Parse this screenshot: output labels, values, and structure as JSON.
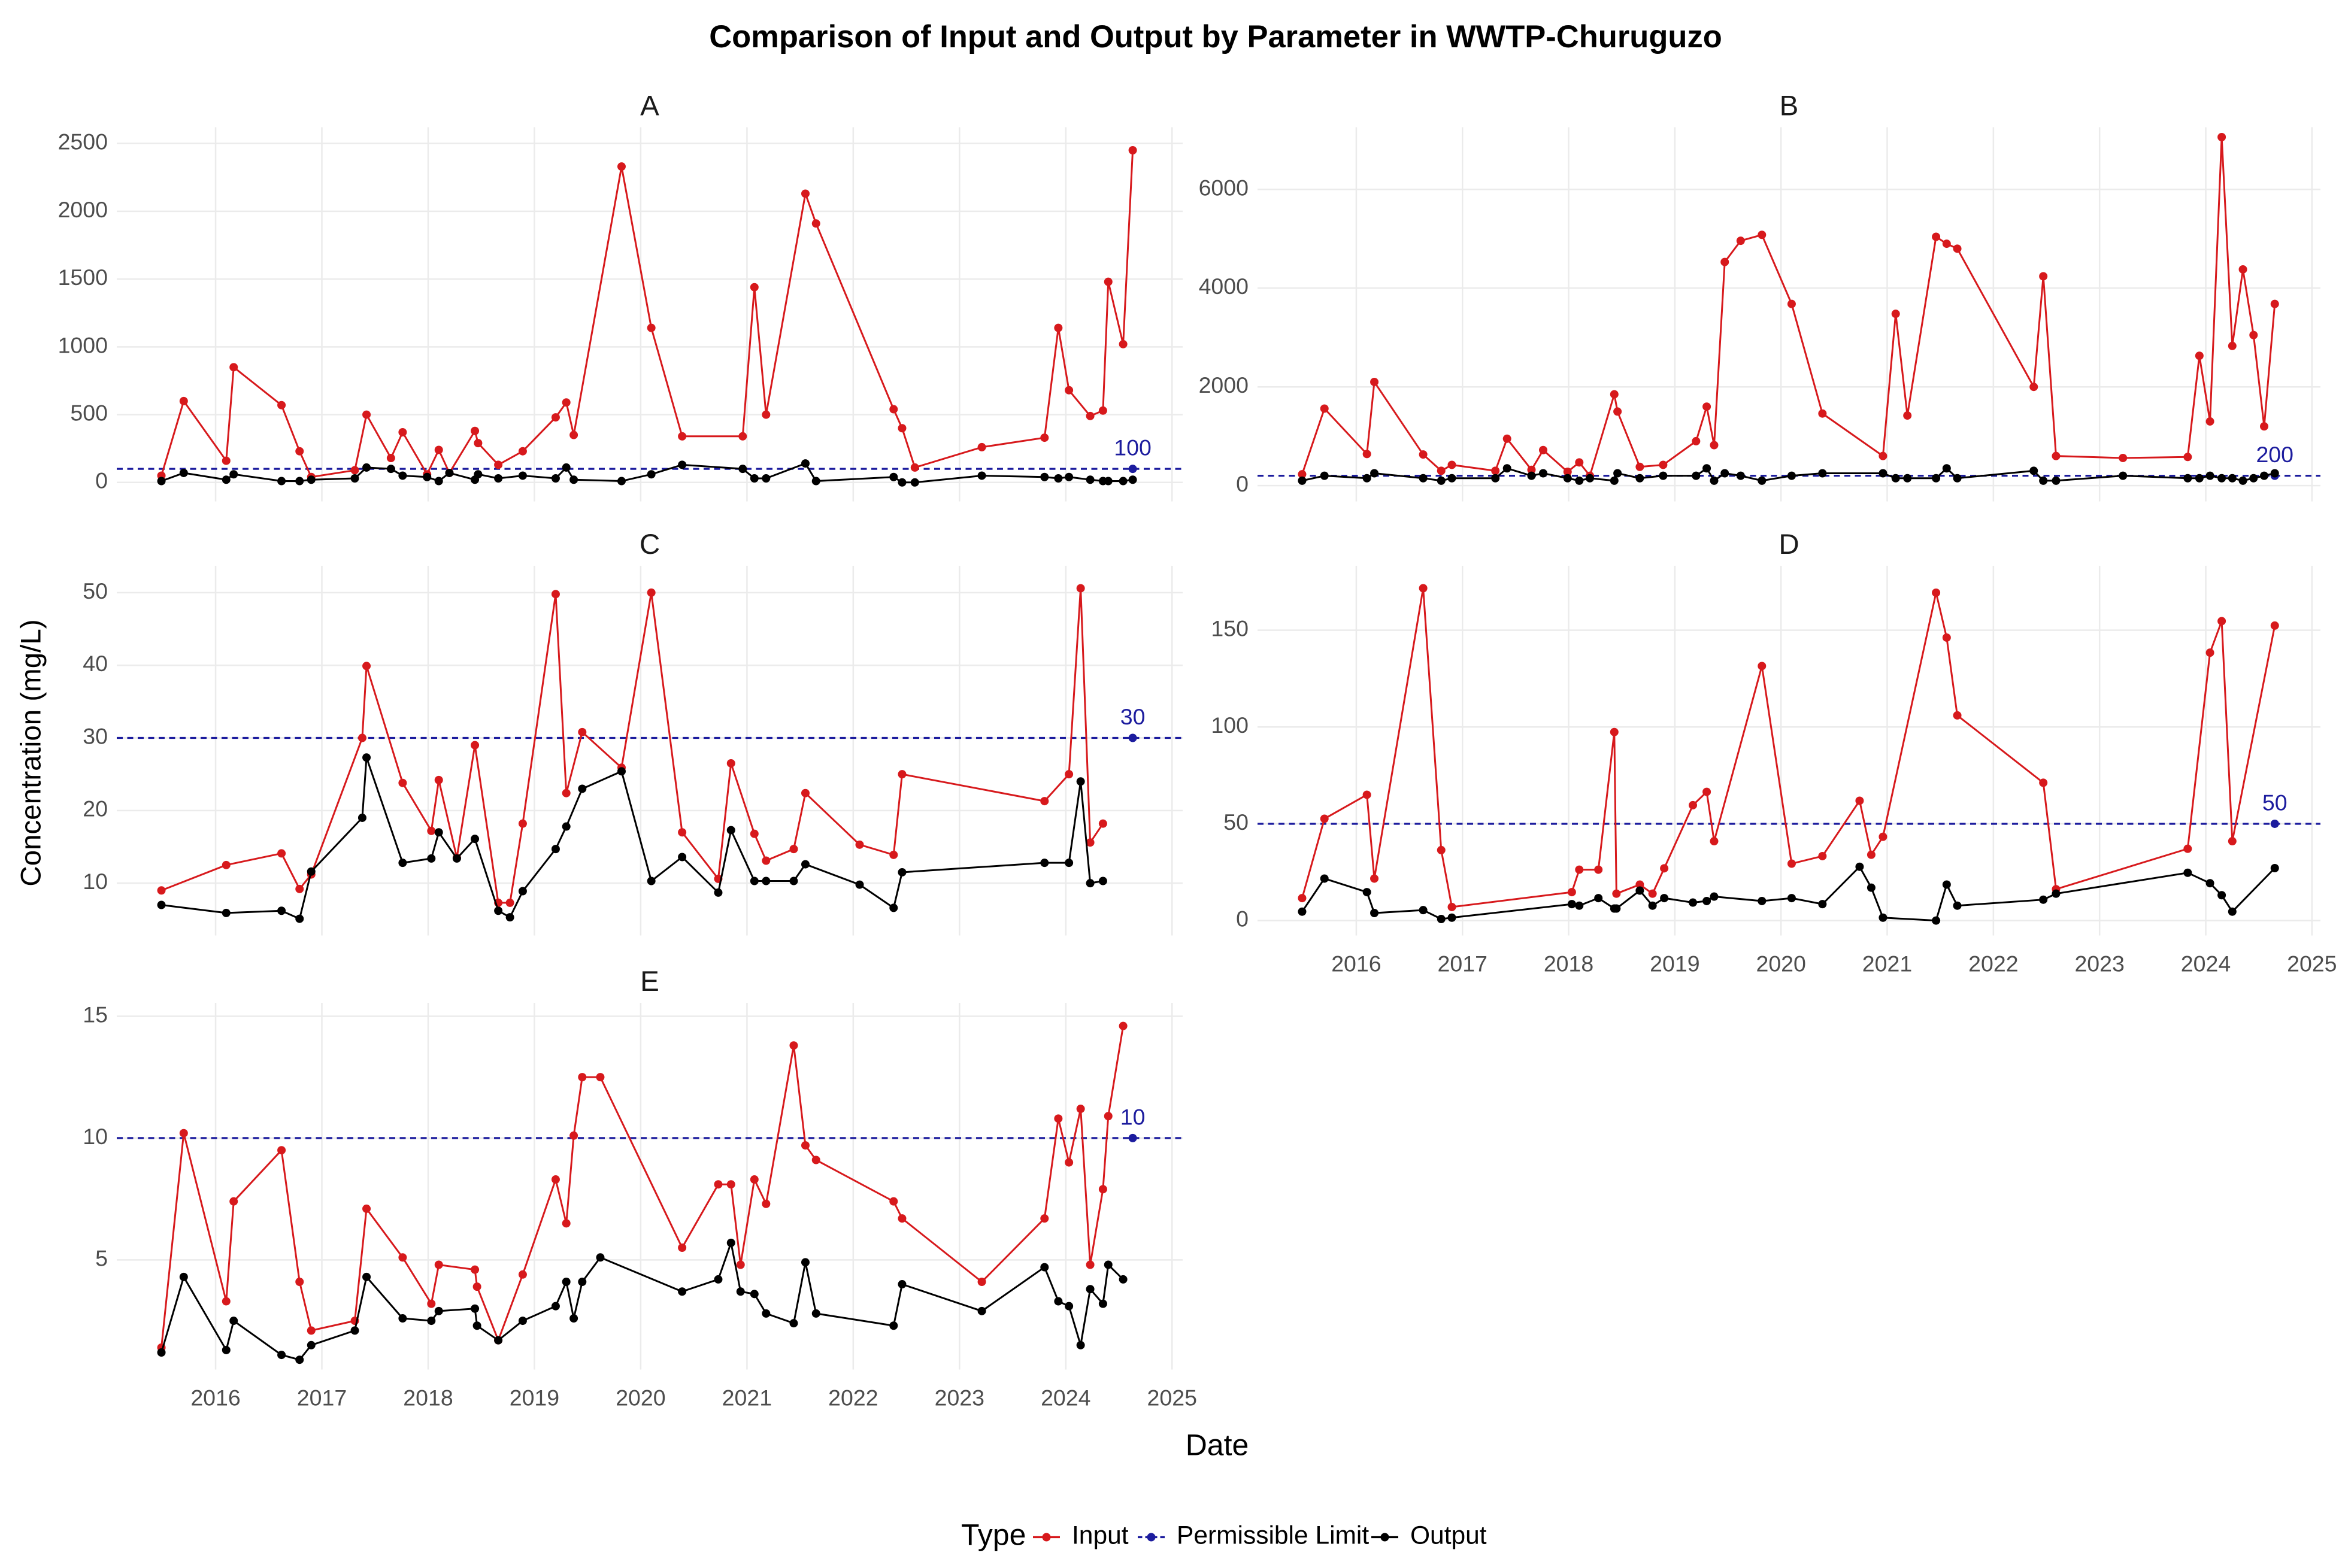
{
  "title": "Comparison of Input and Output by Parameter in WWTP-Churuguzo",
  "x_label": "Date",
  "y_label": "Concentration (mg/L)",
  "legend": {
    "title": "Type",
    "items": [
      {
        "name": "Input",
        "color": "#d7191c"
      },
      {
        "name": "Permissible Limit",
        "color": "#1c1c9e"
      },
      {
        "name": "Output",
        "color": "#000000"
      }
    ]
  },
  "chart_data": [
    {
      "type": "line",
      "title": "A",
      "grid": true,
      "xtick_labels": false,
      "xlim": [
        2015.07,
        2025.1
      ],
      "xticks": [
        2016,
        2017,
        2018,
        2019,
        2020,
        2021,
        2022,
        2023,
        2024,
        2025
      ],
      "ylim": [
        -140,
        2620
      ],
      "yticks": [
        0,
        500,
        1000,
        1500,
        2000,
        2500
      ],
      "x": [
        2015.49,
        2015.7,
        2016.1,
        2016.17,
        2016.62,
        2016.79,
        2016.9,
        2017.31,
        2017.42,
        2017.65,
        2017.76,
        2017.99,
        2018.1,
        2018.2,
        2018.44,
        2018.47,
        2018.66,
        2018.89,
        2019.2,
        2019.3,
        2019.37,
        2019.82,
        2020.1,
        2020.39,
        2020.96,
        2021.07,
        2021.18,
        2021.55,
        2021.65,
        2022.38,
        2022.46,
        2022.58,
        2023.21,
        2023.8,
        2023.93,
        2024.03,
        2024.23,
        2024.35,
        2024.4,
        2024.54,
        2024.63
      ],
      "series": [
        {
          "values": [
            50,
            600,
            160,
            850,
            570,
            230,
            40,
            90,
            500,
            180,
            370,
            60,
            240,
            70,
            380,
            290,
            130,
            230,
            480,
            590,
            350,
            2330,
            1140,
            340,
            340,
            1440,
            500,
            2130,
            1910,
            540,
            400,
            110,
            260,
            330,
            1140,
            680,
            490,
            530,
            1480,
            1020,
            2450
          ]
        },
        {
          "values": [
            10,
            70,
            20,
            60,
            10,
            10,
            20,
            30,
            110,
            100,
            50,
            40,
            10,
            70,
            20,
            60,
            30,
            50,
            30,
            110,
            20,
            10,
            60,
            130,
            100,
            30,
            30,
            140,
            10,
            40,
            0,
            0,
            50,
            40,
            30,
            40,
            20,
            10,
            10,
            10,
            20
          ]
        }
      ],
      "limit": {
        "value": 100,
        "x": 2024.63
      }
    },
    {
      "type": "line",
      "title": "B",
      "grid": true,
      "xtick_labels": false,
      "xlim": [
        2015.07,
        2025.08
      ],
      "xticks": [
        2016,
        2017,
        2018,
        2019,
        2020,
        2021,
        2022,
        2023,
        2024,
        2025
      ],
      "ylim": [
        -320,
        7260
      ],
      "yticks": [
        0,
        2000,
        4000,
        6000
      ],
      "x": [
        2015.49,
        2015.7,
        2016.1,
        2016.17,
        2016.63,
        2016.8,
        2016.9,
        2017.31,
        2017.42,
        2017.65,
        2017.76,
        2017.99,
        2018.1,
        2018.2,
        2018.43,
        2018.46,
        2018.67,
        2018.89,
        2019.2,
        2019.3,
        2019.37,
        2019.47,
        2019.62,
        2019.82,
        2020.1,
        2020.39,
        2020.96,
        2021.08,
        2021.19,
        2021.46,
        2021.56,
        2021.66,
        2022.38,
        2022.47,
        2022.59,
        2023.22,
        2023.83,
        2023.94,
        2024.04,
        2024.15,
        2024.25,
        2024.35,
        2024.45,
        2024.55,
        2024.65
      ],
      "series": [
        {
          "values": [
            230,
            1560,
            640,
            2100,
            630,
            300,
            420,
            300,
            950,
            320,
            720,
            280,
            470,
            200,
            1850,
            1500,
            380,
            420,
            900,
            1600,
            820,
            4530,
            4960,
            5080,
            3680,
            1460,
            600,
            3480,
            1420,
            5040,
            4900,
            4800,
            2000,
            4240,
            600,
            560,
            580,
            2630,
            1300,
            7060,
            2830,
            4380,
            3050,
            1200,
            3680
          ]
        },
        {
          "values": [
            100,
            200,
            150,
            250,
            150,
            100,
            150,
            150,
            350,
            200,
            250,
            150,
            100,
            150,
            100,
            250,
            150,
            200,
            200,
            350,
            100,
            250,
            200,
            100,
            200,
            250,
            250,
            150,
            150,
            150,
            350,
            150,
            300,
            100,
            100,
            200,
            150,
            150,
            200,
            150,
            150,
            100,
            150,
            200,
            250
          ]
        }
      ],
      "limit": {
        "value": 200,
        "x": 2024.65
      }
    },
    {
      "type": "line",
      "title": "C",
      "grid": true,
      "xtick_labels": false,
      "xlim": [
        2015.07,
        2025.1
      ],
      "xticks": [
        2016,
        2017,
        2018,
        2019,
        2020,
        2021,
        2022,
        2023,
        2024,
        2025
      ],
      "ylim": [
        2.8,
        53.7
      ],
      "yticks": [
        10,
        20,
        30,
        40,
        50
      ],
      "x": [
        2015.49,
        2016.1,
        2016.62,
        2016.79,
        2016.9,
        2017.38,
        2017.42,
        2017.76,
        2018.03,
        2018.1,
        2018.27,
        2018.44,
        2018.66,
        2018.77,
        2018.89,
        2019.2,
        2019.3,
        2019.45,
        2019.82,
        2020.1,
        2020.39,
        2020.73,
        2020.85,
        2021.07,
        2021.18,
        2021.44,
        2021.55,
        2022.06,
        2022.38,
        2022.46,
        2023.8,
        2024.03,
        2024.14,
        2024.23,
        2024.35
      ],
      "series": [
        {
          "values": [
            9,
            12.5,
            14.1,
            9.2,
            11.2,
            30,
            39.9,
            23.8,
            17.2,
            24.2,
            13.5,
            29,
            7.3,
            7.3,
            18.2,
            49.8,
            22.4,
            30.8,
            25.9,
            50,
            17,
            10.6,
            26.5,
            16.8,
            13.1,
            14.7,
            22.4,
            15.3,
            13.9,
            25,
            21.3,
            25,
            50.6,
            15.6,
            18.2
          ]
        },
        {
          "values": [
            7,
            5.9,
            6.2,
            5.1,
            11.6,
            19,
            27.3,
            12.8,
            13.4,
            17,
            13.4,
            16.1,
            6.2,
            5.3,
            8.9,
            14.7,
            17.8,
            23,
            25.4,
            10.3,
            13.6,
            8.7,
            17.3,
            10.3,
            10.3,
            10.3,
            12.6,
            9.8,
            6.6,
            11.5,
            12.8,
            12.8,
            24,
            10,
            10.3
          ]
        }
      ],
      "limit": {
        "value": 30,
        "x": 2024.63
      }
    },
    {
      "type": "line",
      "title": "D",
      "grid": true,
      "xtick_labels": true,
      "xlim": [
        2015.07,
        2025.08
      ],
      "xticks": [
        2016,
        2017,
        2018,
        2019,
        2020,
        2021,
        2022,
        2023,
        2024,
        2025
      ],
      "ylim": [
        -7.7,
        183.3
      ],
      "yticks": [
        0,
        50,
        100,
        150
      ],
      "x": [
        2015.49,
        2015.7,
        2016.1,
        2016.17,
        2016.63,
        2016.8,
        2016.9,
        2018.03,
        2018.1,
        2018.28,
        2018.43,
        2018.45,
        2018.67,
        2018.79,
        2018.9,
        2019.17,
        2019.3,
        2019.37,
        2019.82,
        2020.1,
        2020.39,
        2020.74,
        2020.85,
        2020.96,
        2021.46,
        2021.56,
        2021.66,
        2022.47,
        2022.59,
        2023.83,
        2024.04,
        2024.15,
        2024.25,
        2024.65
      ],
      "series": [
        {
          "values": [
            11.6,
            52.6,
            65,
            21.7,
            171.7,
            36.4,
            7,
            14.7,
            26.3,
            26.3,
            97.4,
            13.9,
            18.6,
            13.9,
            27,
            59.6,
            66.5,
            41,
            131.5,
            29.4,
            33.3,
            61.9,
            34,
            43.3,
            169.4,
            146.2,
            106,
            71.2,
            16.2,
            37.1,
            138.4,
            154.7,
            41,
            152.4
          ]
        },
        {
          "values": [
            4.6,
            21.7,
            14.7,
            3.9,
            5.4,
            0.8,
            1.5,
            8.5,
            7.7,
            11.6,
            6.2,
            6.2,
            15.5,
            7.7,
            11.6,
            9.3,
            10.1,
            12.4,
            10.1,
            11.6,
            8.5,
            27.8,
            17,
            1.5,
            0,
            18.6,
            7.7,
            10.8,
            13.9,
            24.7,
            19.3,
            13.1,
            4.6,
            27.1
          ]
        }
      ],
      "limit": {
        "value": 50,
        "x": 2024.65
      }
    },
    {
      "type": "line",
      "title": "E",
      "grid": true,
      "xtick_labels": true,
      "xlim": [
        2015.07,
        2025.1
      ],
      "xticks": [
        2016,
        2017,
        2018,
        2019,
        2020,
        2021,
        2022,
        2023,
        2024,
        2025
      ],
      "ylim": [
        0.5,
        15.55
      ],
      "yticks": [
        5,
        10,
        15
      ],
      "x": [
        2015.49,
        2015.7,
        2016.1,
        2016.17,
        2016.62,
        2016.79,
        2016.9,
        2017.31,
        2017.42,
        2017.76,
        2018.03,
        2018.1,
        2018.44,
        2018.46,
        2018.66,
        2018.89,
        2019.2,
        2019.3,
        2019.37,
        2019.45,
        2019.62,
        2020.39,
        2020.73,
        2020.85,
        2020.94,
        2021.07,
        2021.18,
        2021.44,
        2021.55,
        2021.65,
        2022.38,
        2022.46,
        2023.21,
        2023.8,
        2023.93,
        2024.03,
        2024.14,
        2024.23,
        2024.35,
        2024.4,
        2024.54
      ],
      "series": [
        {
          "values": [
            1.4,
            10.2,
            3.3,
            7.4,
            9.5,
            4.1,
            2.1,
            2.5,
            7.1,
            5.1,
            3.2,
            4.8,
            4.6,
            3.9,
            1.7,
            4.4,
            8.3,
            6.5,
            10.1,
            12.5,
            12.5,
            5.5,
            8.1,
            8.1,
            4.8,
            8.3,
            7.3,
            13.8,
            9.7,
            9.1,
            7.4,
            6.7,
            4.1,
            6.7,
            10.8,
            9,
            11.2,
            4.8,
            7.9,
            10.9,
            14.6
          ]
        },
        {
          "values": [
            1.2,
            4.3,
            1.3,
            2.5,
            1.1,
            0.9,
            1.5,
            2.1,
            4.3,
            2.6,
            2.5,
            2.9,
            3,
            2.3,
            1.7,
            2.5,
            3.1,
            4.1,
            2.6,
            4.1,
            5.1,
            3.7,
            4.2,
            5.7,
            3.7,
            3.6,
            2.8,
            2.4,
            4.9,
            2.8,
            2.3,
            4,
            2.9,
            4.7,
            3.3,
            3.1,
            1.5,
            3.8,
            3.2,
            4.8,
            4.2
          ]
        }
      ],
      "limit": {
        "value": 10,
        "x": 2024.63
      }
    }
  ]
}
